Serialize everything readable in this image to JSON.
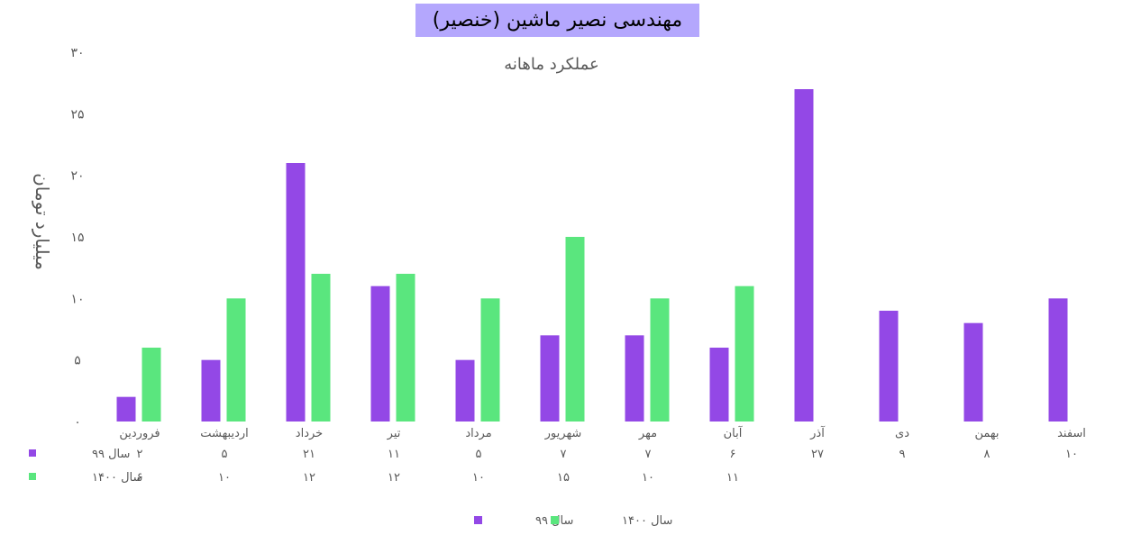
{
  "chart_data": {
    "type": "bar",
    "title": "مهندسی نصیر ماشین (خنصیر)",
    "subtitle": "عملکرد ماهانه",
    "ylabel": "میلیارد تومان",
    "xlabel": "",
    "ylim": [
      0,
      30
    ],
    "yticks": [
      "۰",
      "۵",
      "۱۰",
      "۱۵",
      "۲۰",
      "۲۵",
      "۳۰"
    ],
    "grid": false,
    "legend_position": "bottom",
    "categories": [
      "فروردین",
      "اردیبهشت",
      "خرداد",
      "تیر",
      "مرداد",
      "شهریور",
      "مهر",
      "آبان",
      "آذر",
      "دی",
      "بهمن",
      "اسفند"
    ],
    "series": [
      {
        "name": "سال ۹۹",
        "color": "#9348e6",
        "values": [
          2,
          5,
          21,
          11,
          5,
          7,
          7,
          6,
          27,
          9,
          8,
          10
        ],
        "labels": [
          "۲",
          "۵",
          "۲۱",
          "۱۱",
          "۵",
          "۷",
          "۷",
          "۶",
          "۲۷",
          "۹",
          "۸",
          "۱۰"
        ]
      },
      {
        "name": "سال ۱۴۰۰",
        "color": "#5ae67e",
        "values": [
          6,
          10,
          12,
          12,
          10,
          15,
          10,
          11,
          null,
          null,
          null,
          null
        ],
        "labels": [
          "۶",
          "۱۰",
          "۱۲",
          "۱۲",
          "۱۰",
          "۱۵",
          "۱۰",
          "۱۱",
          "",
          "",
          "",
          ""
        ]
      }
    ]
  }
}
